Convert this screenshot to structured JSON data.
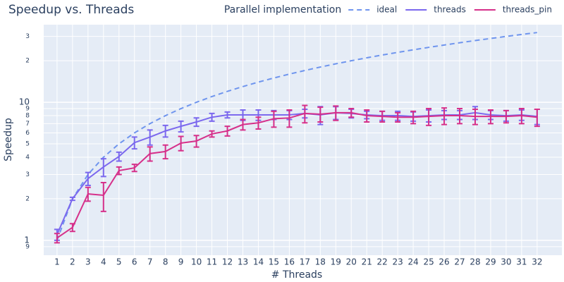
{
  "chart_data": {
    "type": "line",
    "title": "Speedup vs. Threads",
    "xlabel": "# Threads",
    "ylabel": "Speedup",
    "legend_title": "Parallel implementation",
    "log_y": true,
    "grid": true,
    "legend": "top-right",
    "xlim": [
      0.14,
      33.6
    ],
    "ylim": [
      0.78,
      36.5
    ],
    "xticks": [
      1,
      2,
      3,
      4,
      5,
      6,
      7,
      8,
      9,
      10,
      11,
      12,
      13,
      14,
      15,
      16,
      17,
      18,
      19,
      20,
      21,
      22,
      23,
      24,
      25,
      26,
      27,
      28,
      29,
      30,
      31,
      32
    ],
    "yticks": [
      {
        "value": 0.9,
        "label": "9"
      },
      1,
      2,
      3,
      4,
      5,
      6,
      7,
      8,
      9,
      10,
      {
        "value": 20,
        "label": "2"
      },
      {
        "value": 30,
        "label": "3"
      }
    ],
    "series": [
      {
        "name": "ideal",
        "color": "#6f95ee",
        "dash": "dash",
        "x": [
          1,
          2,
          3,
          4,
          5,
          6,
          7,
          8,
          9,
          10,
          11,
          12,
          13,
          14,
          15,
          16,
          17,
          18,
          19,
          20,
          21,
          22,
          23,
          24,
          25,
          26,
          27,
          28,
          29,
          30,
          31,
          32
        ],
        "values": [
          1,
          2,
          3,
          4,
          5,
          6,
          7,
          8,
          9,
          10,
          11,
          12,
          13,
          14,
          15,
          16,
          17,
          18,
          19,
          20,
          21,
          22,
          23,
          24,
          25,
          26,
          27,
          28,
          29,
          30,
          31,
          32
        ]
      },
      {
        "name": "threads",
        "color": "#7b68ee",
        "x": [
          1,
          2,
          3,
          4,
          5,
          6,
          7,
          8,
          9,
          10,
          11,
          12,
          13,
          14,
          15,
          16,
          17,
          18,
          19,
          20,
          21,
          22,
          23,
          24,
          25,
          26,
          27,
          28,
          29,
          30,
          31,
          32
        ],
        "values": [
          1.1,
          2.0,
          2.8,
          3.4,
          4.05,
          5.1,
          5.6,
          6.2,
          6.7,
          7.2,
          7.8,
          8.1,
          8.1,
          8.1,
          8.1,
          8.1,
          8.3,
          8.1,
          8.4,
          8.3,
          8.1,
          8.0,
          8.0,
          7.9,
          8.0,
          8.1,
          8.1,
          8.4,
          8.1,
          8.0,
          8.1,
          7.9
        ],
        "errors": [
          0.1,
          0.05,
          0.3,
          0.5,
          0.3,
          0.5,
          0.7,
          0.6,
          0.6,
          0.5,
          0.5,
          0.4,
          0.7,
          0.7,
          0.6,
          0.6,
          0.6,
          1.2,
          0.9,
          0.6,
          0.5,
          0.6,
          0.6,
          0.6,
          0.8,
          0.6,
          0.6,
          0.9,
          0.6,
          0.7,
          0.7,
          1.0
        ]
      },
      {
        "name": "threads_pin",
        "color": "#d6308a",
        "x": [
          1,
          2,
          3,
          4,
          5,
          6,
          7,
          8,
          9,
          10,
          11,
          12,
          13,
          14,
          15,
          16,
          17,
          18,
          19,
          20,
          21,
          22,
          23,
          24,
          25,
          26,
          27,
          28,
          29,
          30,
          31,
          32
        ],
        "values": [
          1.04,
          1.24,
          2.17,
          2.12,
          3.2,
          3.35,
          4.25,
          4.4,
          5.06,
          5.24,
          5.9,
          6.2,
          6.9,
          7.1,
          7.6,
          7.7,
          8.3,
          8.2,
          8.4,
          8.4,
          8.0,
          7.9,
          7.8,
          7.8,
          7.9,
          8.0,
          8.0,
          7.9,
          7.9,
          7.9,
          8.0,
          7.8
        ],
        "errors": [
          0.08,
          0.08,
          0.25,
          0.5,
          0.2,
          0.2,
          0.5,
          0.5,
          0.6,
          0.5,
          0.3,
          0.5,
          0.6,
          0.7,
          1.0,
          1.1,
          1.2,
          1.0,
          1.0,
          0.6,
          0.8,
          0.7,
          0.6,
          0.8,
          1.1,
          1.1,
          1.0,
          1.0,
          0.9,
          0.8,
          1.0,
          1.1
        ]
      }
    ]
  }
}
